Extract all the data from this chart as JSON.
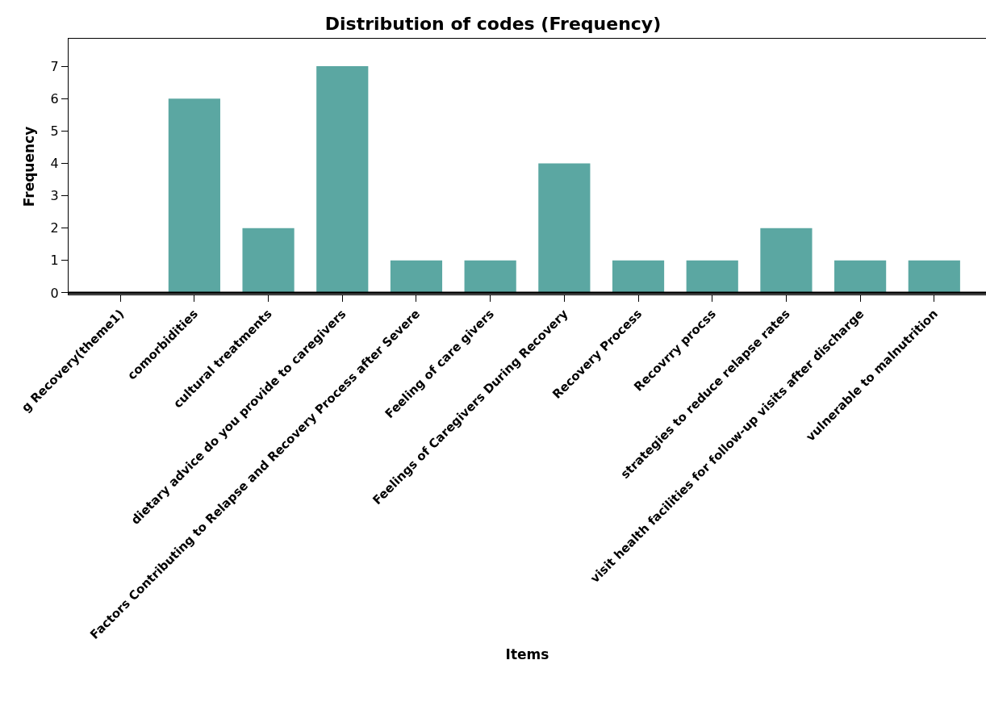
{
  "chart_data": {
    "type": "bar",
    "title": "Distribution of codes (Frequency)",
    "xlabel": "Items",
    "ylabel": "Frequency",
    "categories": [
      "g Recovery(theme1)",
      "comorbidities",
      "cultural treatments",
      "dietary advice do you provide to caregivers",
      "Factors Contributing to Relapse and Recovery Process after Severe",
      "Feeling of care givers",
      "Feelings of Caregivers During Recovery",
      "Recovery Process",
      "Recovrry procss",
      "strategies to reduce relapse rates",
      "visit health facilities for follow-up visits after discharge",
      "vulnerable to malnutrition"
    ],
    "values": [
      0,
      6,
      2,
      7,
      1,
      1,
      4,
      1,
      1,
      2,
      1,
      1
    ],
    "color": "#5ba7a2",
    "ylim": [
      -0.05,
      7.85
    ],
    "yticks": [
      0,
      1,
      2,
      3,
      4,
      5,
      6,
      7
    ]
  }
}
